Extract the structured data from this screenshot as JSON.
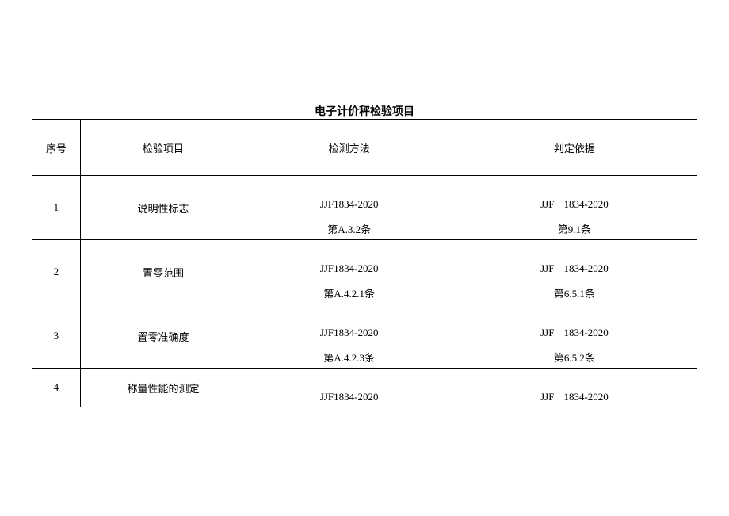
{
  "title": "电子计价秤检验项目",
  "headers": {
    "seq": "序号",
    "item": "检验项目",
    "method": "检测方法",
    "basis": "判定依据"
  },
  "rows": [
    {
      "seq": "1",
      "item": "说明性标志",
      "method_code": "JJF1834-2020",
      "method_clause": "第A.3.2条",
      "basis_prefix": "JJF",
      "basis_code": "1834-2020",
      "basis_clause": "第9.1条"
    },
    {
      "seq": "2",
      "item": "置零范围",
      "method_code": "JJF1834-2020",
      "method_clause": "第A.4.2.1条",
      "basis_prefix": "JJF",
      "basis_code": "1834-2020",
      "basis_clause": "第6.5.1条"
    },
    {
      "seq": "3",
      "item": "置零准确度",
      "method_code": "JJF1834-2020",
      "method_clause": "第A.4.2.3条",
      "basis_prefix": "JJF",
      "basis_code": "1834-2020",
      "basis_clause": "第6.5.2条"
    },
    {
      "seq": "4",
      "item": "称量性能的测定",
      "method_code": "JJF1834-2020",
      "basis_prefix": "JJF",
      "basis_code": "1834-2020"
    }
  ]
}
